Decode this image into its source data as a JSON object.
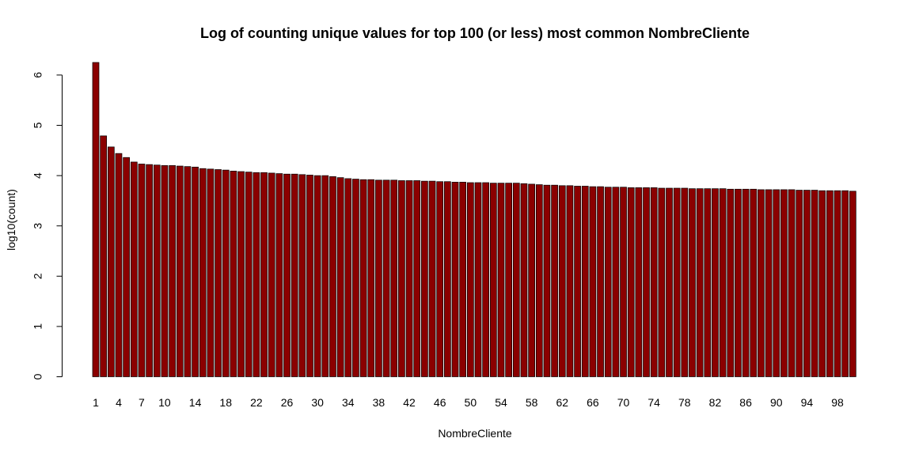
{
  "chart_data": {
    "type": "bar",
    "title": "Log of counting unique values for top 100 (or less) most common NombreCliente",
    "xlabel": "NombreCliente",
    "ylabel": "log10(count)",
    "bar_color": "#8B0000",
    "ylim": [
      0,
      6.3
    ],
    "y_ticks": [
      0,
      1,
      2,
      3,
      4,
      5,
      6
    ],
    "categories": [
      1,
      2,
      3,
      4,
      5,
      6,
      7,
      8,
      9,
      10,
      11,
      12,
      13,
      14,
      15,
      16,
      17,
      18,
      19,
      20,
      21,
      22,
      23,
      24,
      25,
      26,
      27,
      28,
      29,
      30,
      31,
      32,
      33,
      34,
      35,
      36,
      37,
      38,
      39,
      40,
      41,
      42,
      43,
      44,
      45,
      46,
      47,
      48,
      49,
      50,
      51,
      52,
      53,
      54,
      55,
      56,
      57,
      58,
      59,
      60,
      61,
      62,
      63,
      64,
      65,
      66,
      67,
      68,
      69,
      70,
      71,
      72,
      73,
      74,
      75,
      76,
      77,
      78,
      79,
      80,
      81,
      82,
      83,
      84,
      85,
      86,
      87,
      88,
      89,
      90,
      91,
      92,
      93,
      94,
      95,
      96,
      97,
      98,
      99,
      100
    ],
    "x_tick_labels": [
      1,
      4,
      7,
      10,
      14,
      18,
      22,
      26,
      30,
      34,
      38,
      42,
      46,
      50,
      54,
      58,
      62,
      66,
      70,
      74,
      78,
      82,
      86,
      90,
      94,
      98
    ],
    "values": [
      6.25,
      4.79,
      4.57,
      4.44,
      4.36,
      4.27,
      4.23,
      4.22,
      4.21,
      4.2,
      4.2,
      4.19,
      4.18,
      4.17,
      4.14,
      4.13,
      4.12,
      4.11,
      4.09,
      4.08,
      4.07,
      4.06,
      4.06,
      4.05,
      4.04,
      4.03,
      4.03,
      4.02,
      4.01,
      4.0,
      4.0,
      3.98,
      3.96,
      3.94,
      3.93,
      3.92,
      3.92,
      3.91,
      3.91,
      3.91,
      3.9,
      3.9,
      3.9,
      3.89,
      3.89,
      3.88,
      3.88,
      3.87,
      3.87,
      3.86,
      3.86,
      3.86,
      3.85,
      3.85,
      3.85,
      3.85,
      3.84,
      3.83,
      3.82,
      3.81,
      3.81,
      3.8,
      3.8,
      3.79,
      3.79,
      3.78,
      3.78,
      3.77,
      3.77,
      3.77,
      3.76,
      3.76,
      3.76,
      3.76,
      3.75,
      3.75,
      3.75,
      3.75,
      3.74,
      3.74,
      3.74,
      3.74,
      3.74,
      3.73,
      3.73,
      3.73,
      3.73,
      3.72,
      3.72,
      3.72,
      3.72,
      3.72,
      3.71,
      3.71,
      3.71,
      3.7,
      3.7,
      3.7,
      3.7,
      3.69
    ]
  }
}
